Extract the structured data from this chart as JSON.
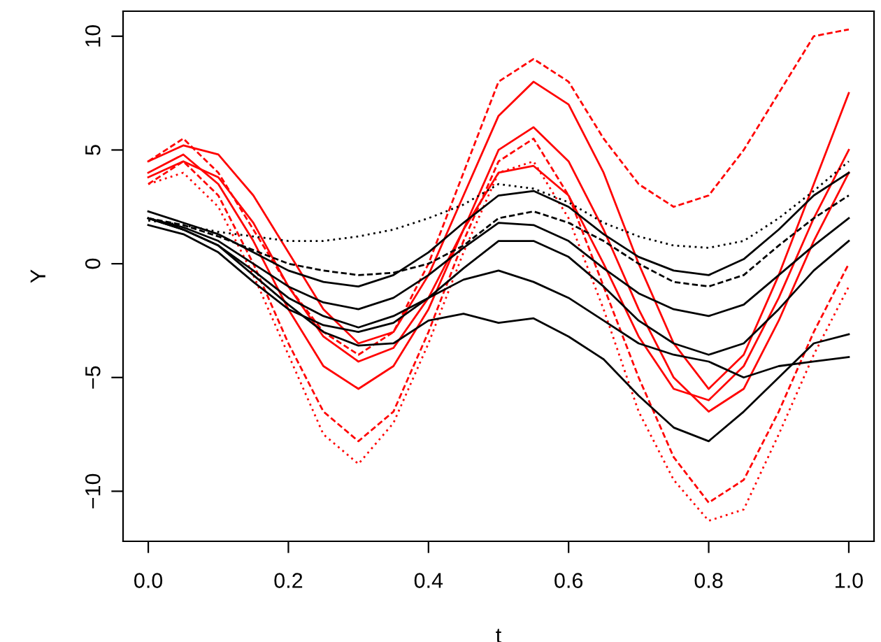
{
  "chart_data": {
    "type": "line",
    "xlabel": "t",
    "ylabel": "Y",
    "x": [
      0,
      0.05,
      0.1,
      0.15,
      0.2,
      0.25,
      0.3,
      0.35,
      0.4,
      0.45,
      0.5,
      0.55,
      0.6,
      0.65,
      0.7,
      0.75,
      0.8,
      0.85,
      0.9,
      0.95,
      1.0
    ],
    "xlim": [
      -0.036,
      1.036
    ],
    "xticks": [
      {
        "value": 0,
        "label": "0.0"
      },
      0.2,
      0.4,
      0.6,
      0.8,
      {
        "value": 1,
        "label": "1.0"
      }
    ],
    "ylim": [
      -12.2,
      11.1
    ],
    "yticks": [
      {
        "value": -10,
        "label": "−10"
      },
      {
        "value": -5,
        "label": "−5"
      },
      0,
      5,
      10
    ],
    "grid": false,
    "legend": false,
    "marker": "none",
    "series": [
      {
        "color": "#ff0000",
        "line_style": "solid",
        "values": [
          4,
          4.8,
          3.5,
          1,
          -2,
          -4.5,
          -5.5,
          -4.5,
          -2,
          1.5,
          5,
          6,
          4.5,
          1.5,
          -2,
          -5,
          -6.5,
          -5.5,
          -2.5,
          1,
          4
        ]
      },
      {
        "color": "#ff0000",
        "line_style": "solid",
        "values": [
          4.5,
          5.2,
          4.8,
          3,
          0.5,
          -2,
          -3.5,
          -3,
          -0.5,
          3,
          6.5,
          8,
          7,
          4,
          0,
          -3.5,
          -5.5,
          -4,
          -0.5,
          3.5,
          7.5
        ]
      },
      {
        "color": "#ff0000",
        "line_style": "dashed",
        "values": [
          3.5,
          4.5,
          3,
          0,
          -3.5,
          -6.5,
          -7.8,
          -6.5,
          -3,
          1,
          4.5,
          5.5,
          3,
          -1,
          -5,
          -8.5,
          -10.5,
          -9.5,
          -6.5,
          -3,
          0
        ]
      },
      {
        "color": "#ff0000",
        "line_style": "dashed",
        "values": [
          4.5,
          5.5,
          4,
          1.5,
          -1,
          -3,
          -4,
          -3,
          0,
          4,
          8,
          9,
          8,
          5.5,
          3.5,
          2.5,
          3,
          5,
          7.5,
          10,
          10.3
        ]
      },
      {
        "color": "#ff0000",
        "line_style": "dotted",
        "values": [
          3.5,
          4,
          2.5,
          -0.5,
          -4,
          -7.5,
          -8.8,
          -7,
          -3.5,
          0.5,
          4,
          4.5,
          2,
          -2,
          -6.5,
          -9.5,
          -11.3,
          -10.8,
          -7.5,
          -4,
          -1
        ]
      },
      {
        "color": "#ff0000",
        "line_style": "solid",
        "values": [
          3.8,
          4.5,
          3.8,
          1.8,
          -1,
          -3.2,
          -4.3,
          -3.7,
          -1.5,
          1.5,
          4,
          4.3,
          3,
          0,
          -3.2,
          -5.5,
          -6,
          -4.5,
          -1.5,
          2,
          5
        ]
      },
      {
        "color": "#000000",
        "line_style": "solid",
        "values": [
          2,
          1.6,
          1,
          0,
          -1,
          -1.7,
          -2,
          -1.5,
          -0.5,
          0.7,
          1.8,
          1.7,
          1,
          -0.2,
          -1.3,
          -2,
          -2.3,
          -1.8,
          -0.5,
          0.8,
          2
        ]
      },
      {
        "color": "#000000",
        "line_style": "solid",
        "values": [
          2.3,
          1.8,
          1.3,
          0.5,
          -0.3,
          -0.8,
          -1,
          -0.5,
          0.5,
          1.8,
          3,
          3.2,
          2.5,
          1.3,
          0.3,
          -0.3,
          -0.5,
          0.2,
          1.5,
          3,
          4
        ]
      },
      {
        "color": "#000000",
        "line_style": "solid",
        "values": [
          1.7,
          1.3,
          0.5,
          -0.8,
          -2,
          -2.7,
          -3,
          -2.6,
          -1.5,
          -0.2,
          1,
          1,
          0.3,
          -1,
          -2.5,
          -3.5,
          -4,
          -3.5,
          -2,
          -0.3,
          1
        ]
      },
      {
        "color": "#000000",
        "line_style": "solid",
        "values": [
          2,
          1.5,
          0.8,
          -0.5,
          -1.8,
          -3,
          -3.6,
          -3.5,
          -2.5,
          -2.2,
          -2.6,
          -2.4,
          -3.2,
          -4.2,
          -5.8,
          -7.2,
          -7.8,
          -6.5,
          -5,
          -3.5,
          -3.1
        ]
      },
      {
        "color": "#000000",
        "line_style": "solid",
        "values": [
          2,
          1.5,
          0.8,
          -0.3,
          -1.5,
          -2.3,
          -2.8,
          -2.3,
          -1.5,
          -0.7,
          -0.3,
          -0.8,
          -1.5,
          -2.5,
          -3.5,
          -4,
          -4.3,
          -5,
          -4.5,
          -4.3,
          -4.1
        ]
      },
      {
        "color": "#000000",
        "line_style": "dotted",
        "values": [
          1.9,
          1.7,
          1.4,
          1.2,
          1,
          1,
          1.2,
          1.5,
          2,
          2.6,
          3.5,
          3.3,
          2.7,
          1.8,
          1.2,
          0.8,
          0.7,
          1,
          2,
          3.2,
          4.5
        ]
      },
      {
        "color": "#000000",
        "line_style": "dashed",
        "values": [
          2,
          1.7,
          1.2,
          0.6,
          0,
          -0.3,
          -0.5,
          -0.4,
          0,
          0.8,
          2,
          2.3,
          1.8,
          1,
          0,
          -0.8,
          -1,
          -0.5,
          0.8,
          2,
          3
        ]
      }
    ]
  }
}
